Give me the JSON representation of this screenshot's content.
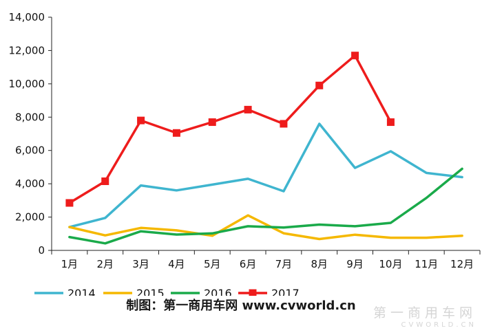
{
  "chart_data": {
    "type": "line",
    "categories": [
      "1月",
      "2月",
      "3月",
      "4月",
      "5月",
      "6月",
      "7月",
      "8月",
      "9月",
      "10月",
      "11月",
      "12月"
    ],
    "y_ticks": [
      "0",
      "2,000",
      "4,000",
      "6,000",
      "8,000",
      "10,000",
      "12,000",
      "14,000"
    ],
    "ylim": [
      0,
      14000
    ],
    "grid": false,
    "legend_position": "bottom",
    "series": [
      {
        "name": "2014",
        "color": "#3fb5cf",
        "marker": "none",
        "values": [
          1400,
          1950,
          3900,
          3600,
          3950,
          4300,
          3550,
          7600,
          4950,
          5950,
          4650,
          4400
        ]
      },
      {
        "name": "2015",
        "color": "#f5b800",
        "marker": "none",
        "values": [
          1400,
          900,
          1350,
          1200,
          880,
          2100,
          1030,
          680,
          940,
          760,
          760,
          880
        ]
      },
      {
        "name": "2016",
        "color": "#1aaa4a",
        "marker": "none",
        "values": [
          800,
          420,
          1150,
          950,
          1020,
          1450,
          1370,
          1550,
          1450,
          1650,
          3150,
          4900
        ]
      },
      {
        "name": "2017",
        "color": "#ee1c1c",
        "marker": "square",
        "values": [
          2850,
          4150,
          7800,
          7050,
          7700,
          8450,
          7600,
          9900,
          11700,
          7700,
          null,
          null
        ]
      }
    ]
  },
  "caption": "制图：第一商用车网 www.cvworld.cn",
  "watermark": {
    "main": "第一商用车网",
    "sub": "CVWORLD.CN"
  }
}
